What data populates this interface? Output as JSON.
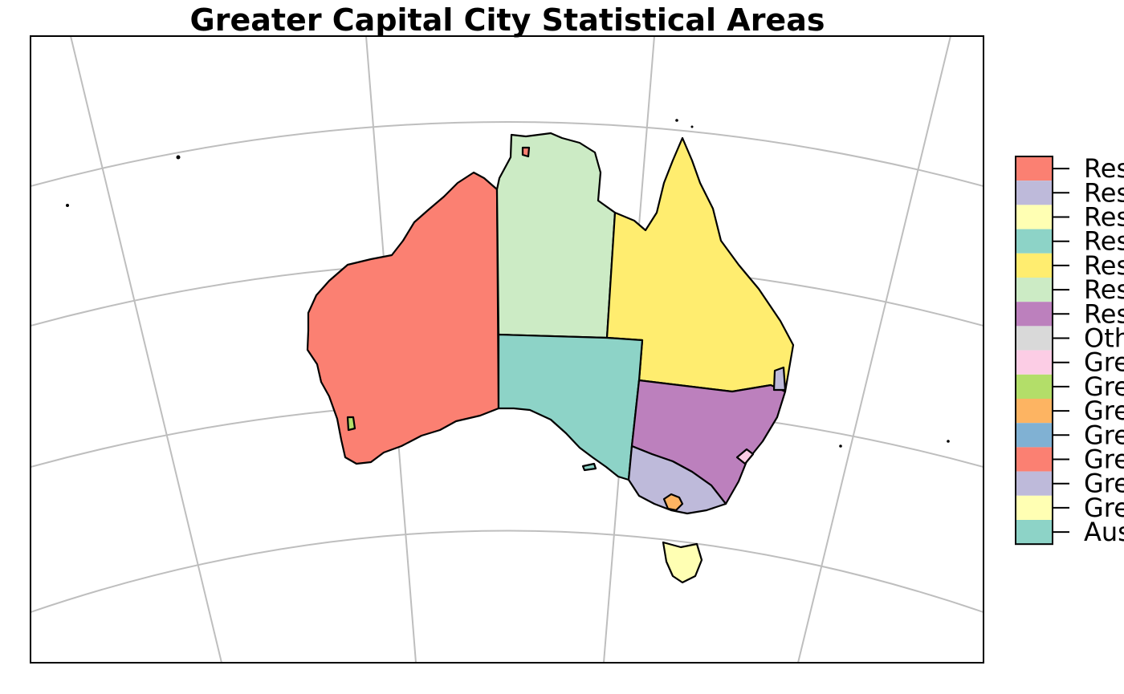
{
  "title": "Greater Capital City Statistical Areas",
  "legend": [
    {
      "label": "Res",
      "color": "#FB8072"
    },
    {
      "label": "Res",
      "color": "#BEBADA"
    },
    {
      "label": "Res",
      "color": "#FFFFB3"
    },
    {
      "label": "Res",
      "color": "#8DD3C7"
    },
    {
      "label": "Res",
      "color": "#FFED6F"
    },
    {
      "label": "Res",
      "color": "#CCEBC5"
    },
    {
      "label": "Res",
      "color": "#BC80BD"
    },
    {
      "label": "Oth",
      "color": "#D9D9D9"
    },
    {
      "label": "Gre",
      "color": "#FCCDE5"
    },
    {
      "label": "Gre",
      "color": "#B3DE69"
    },
    {
      "label": "Gre",
      "color": "#FDB462"
    },
    {
      "label": "Gre",
      "color": "#80B1D3"
    },
    {
      "label": "Gre",
      "color": "#FB8072"
    },
    {
      "label": "Gre",
      "color": "#BEBADA"
    },
    {
      "label": "Gre",
      "color": "#FFFFB3"
    },
    {
      "label": "Aus",
      "color": "#8DD3C7"
    }
  ]
}
